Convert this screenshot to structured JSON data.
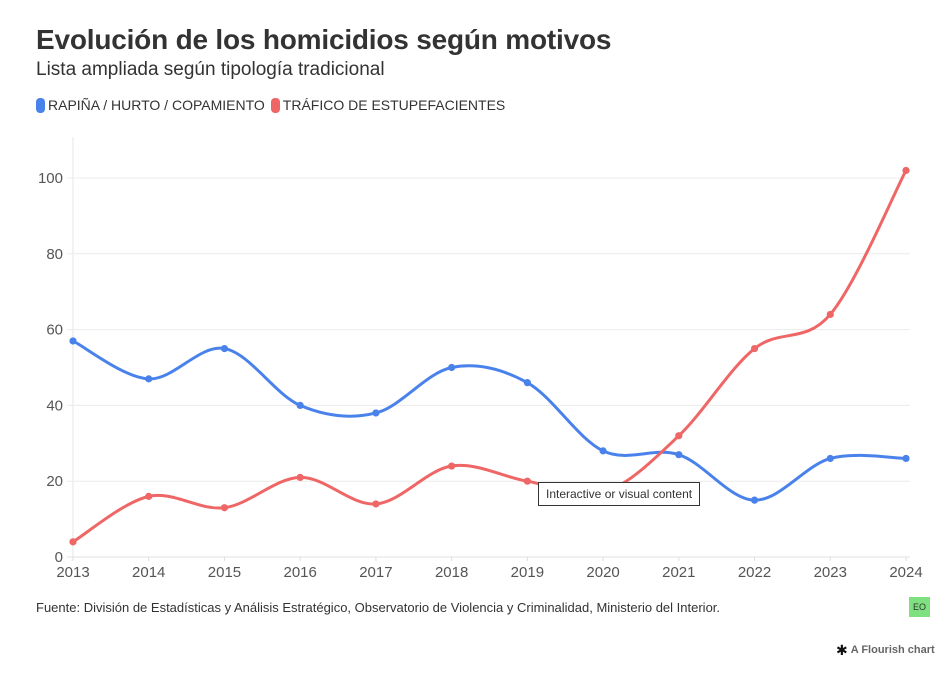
{
  "header": {
    "title": "Evolución de los homicidios según motivos",
    "subtitle": "Lista ampliada según tipología tradicional"
  },
  "legend": [
    {
      "label": "RAPIÑA / HURTO / COPAMIENTO",
      "color": "#4a82eb"
    },
    {
      "label": "TRÁFICO DE ESTUPEFACIENTES",
      "color": "#ef6666"
    }
  ],
  "tooltip": {
    "text": "Interactive or visual content"
  },
  "footer": {
    "source": "Fuente: División de Estadísticas y Análisis Estratégico, Observatorio de Violencia y Criminalidad, Ministerio del Interior.",
    "badge": "EO",
    "badge_color": "#7ee07e",
    "credit": "A Flourish chart",
    "credit_icon": "flourish-asterisk-icon"
  },
  "chart_data": {
    "type": "line",
    "title": "Evolución de los homicidios según motivos",
    "subtitle": "Lista ampliada según tipología tradicional",
    "xlabel": "",
    "ylabel": "",
    "x": [
      "2013",
      "2014",
      "2015",
      "2016",
      "2017",
      "2018",
      "2019",
      "2020",
      "2021",
      "2022",
      "2023",
      "2024"
    ],
    "ylim": [
      0,
      110
    ],
    "yticks": [
      0,
      20,
      40,
      60,
      80,
      100
    ],
    "grid": true,
    "legend_position": "top-left",
    "curve": "smooth",
    "markers": true,
    "series": [
      {
        "name": "RAPIÑA / HURTO / COPAMIENTO",
        "color": "#4a82eb",
        "values": [
          57,
          47,
          55,
          40,
          38,
          50,
          46,
          28,
          27,
          15,
          26,
          26
        ]
      },
      {
        "name": "TRÁFICO DE ESTUPEFACIENTES",
        "color": "#ef6666",
        "values": [
          4,
          16,
          13,
          21,
          14,
          24,
          20,
          17,
          32,
          55,
          64,
          102
        ]
      }
    ]
  }
}
